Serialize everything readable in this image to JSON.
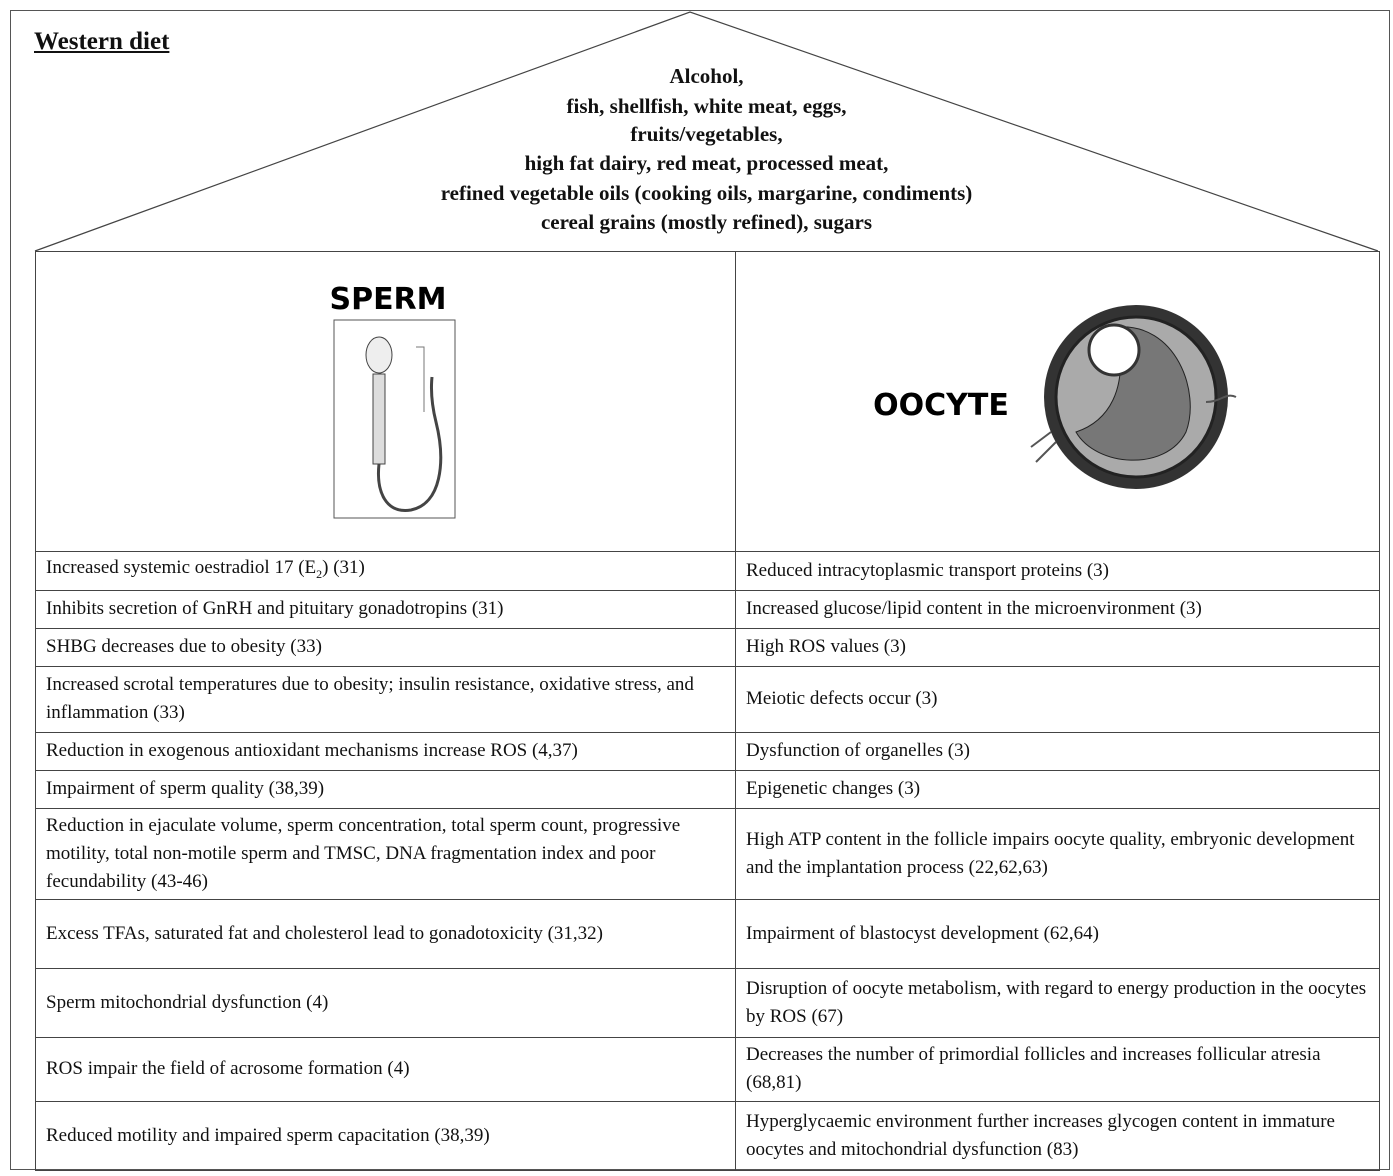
{
  "title": "Western diet",
  "roof": {
    "lines": [
      "Alcohol,",
      "fish, shellfish, white meat, eggs,",
      "fruits/vegetables,",
      "high fat dairy, red meat, processed meat,",
      "refined vegetable oils (cooking oils, margarine, condiments)",
      "cereal grains (mostly refined), sugars"
    ]
  },
  "panels": {
    "sperm": "SPERM",
    "oocyte": "OOCYTE"
  },
  "table": {
    "rows": [
      [
        [
          "Increased systemic oestradiol 17 (E",
          "2",
          ") (31)"
        ],
        "Reduced intracytoplasmic transport proteins (3)"
      ],
      [
        "Inhibits secretion of GnRH and pituitary gonadotropins (31)",
        "Increased glucose/lipid content in the microenvironment (3)"
      ],
      [
        "SHBG decreases due to obesity (33)",
        "High ROS values (3)"
      ],
      [
        "Increased scrotal temperatures due to obesity;  insulin resistance, oxidative stress, and inflammation (33)",
        "Meiotic defects occur (3)"
      ],
      [
        "Reduction in exogenous antioxidant mechanisms increase ROS (4,37)",
        "Dysfunction of organelles (3)"
      ],
      [
        "Impairment of sperm quality (38,39)",
        "Epigenetic changes (3)"
      ],
      [
        "Reduction in ejaculate volume, sperm concentration, total sperm count, progressive motility, total non-motile sperm and TMSC, DNA fragmentation index and poor fecundability (43-46)",
        "High ATP content in the follicle impairs oocyte quality, embryonic development and the implantation process (22,62,63)"
      ],
      [
        "Excess TFAs, saturated fat and cholesterol lead to gonadotoxicity (31,32)",
        "Impairment of blastocyst development (62,64)"
      ],
      [
        "Sperm mitochondrial dysfunction (4)",
        "Disruption of oocyte metabolism, with regard to energy production in the oocytes by ROS (67)"
      ],
      [
        "ROS impair the field of acrosome formation (4)",
        "Decreases the number of primordial follicles and increases follicular atresia (68,81)"
      ],
      [
        "Reduced motility and impaired sperm capacitation (38,39)",
        "Hyperglycaemic environment further increases glycogen content in immature oocytes and mitochondrial dysfunction (83)"
      ]
    ]
  }
}
